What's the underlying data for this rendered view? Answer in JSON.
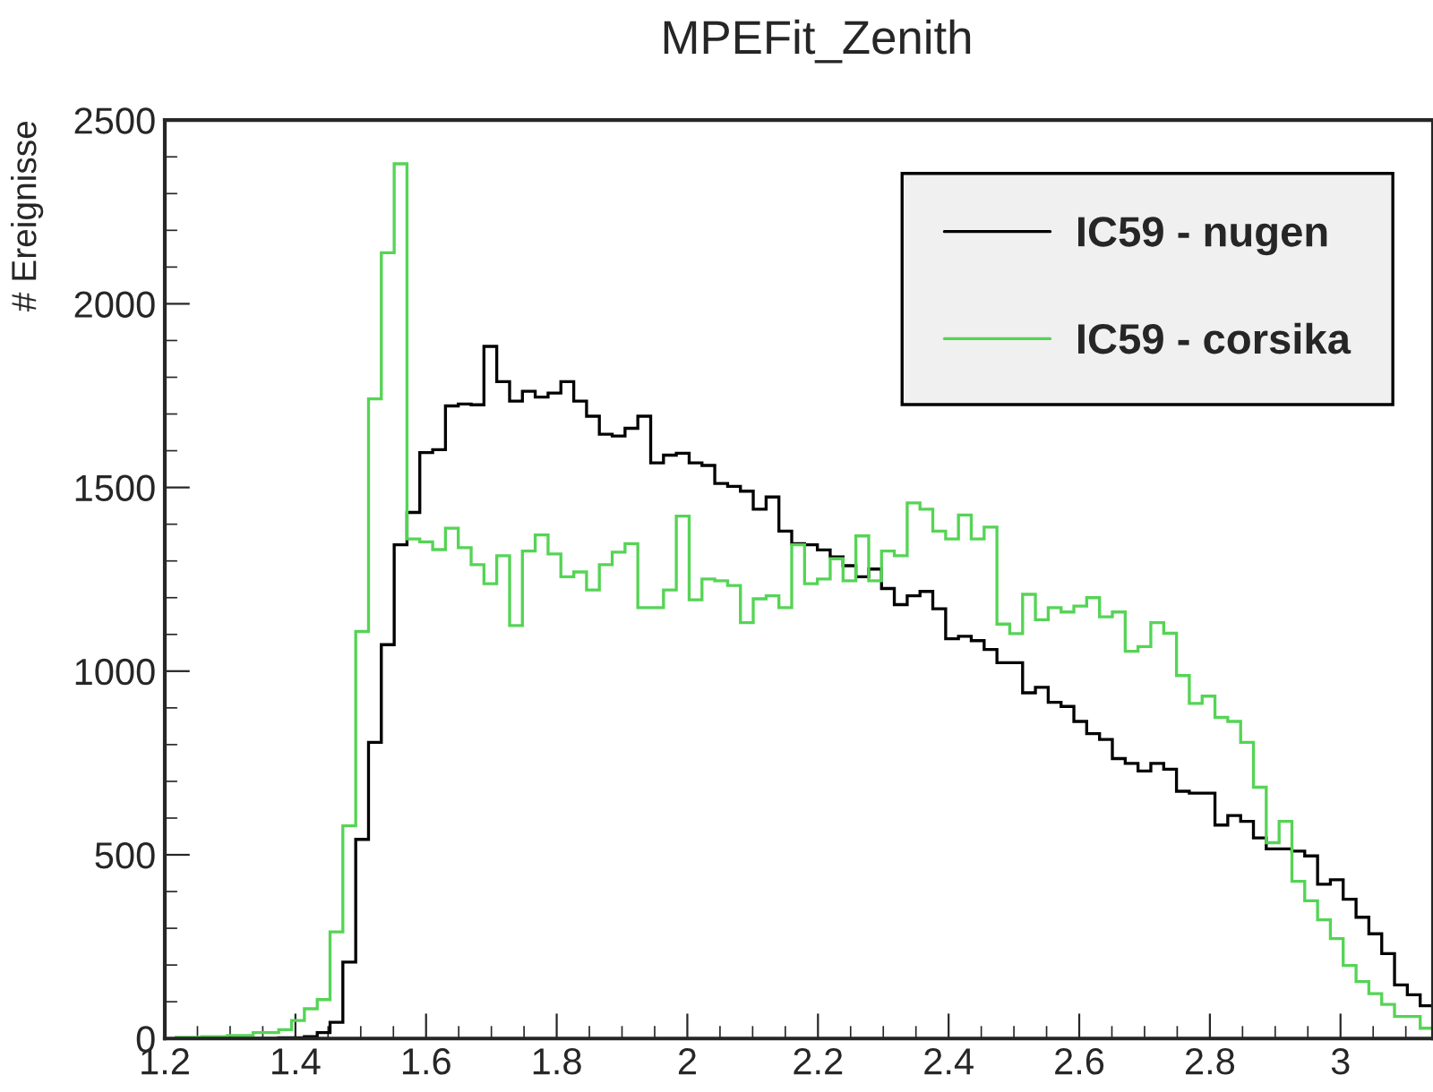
{
  "chart_data": {
    "type": "histogram",
    "title": "MPEFit_Zenith",
    "ylabel": "# Ereignisse",
    "bins": [
      1.2174,
      1.237,
      1.2566,
      1.2763,
      1.2959,
      1.3155,
      1.3352,
      1.3548,
      1.3744,
      1.3941,
      1.4137,
      1.4334,
      1.453,
      1.4726,
      1.4923,
      1.5119,
      1.5315,
      1.5512,
      1.5708,
      1.5904,
      1.6101,
      1.6297,
      1.6493,
      1.669,
      1.6886,
      1.7082,
      1.7279,
      1.7475,
      1.7671,
      1.7868,
      1.8064,
      1.8261,
      1.8457,
      1.8653,
      1.885,
      1.9046,
      1.9242,
      1.9439,
      1.9635,
      1.9831,
      2.0028,
      2.0224,
      2.042,
      2.0617,
      2.0813,
      2.1009,
      2.1206,
      2.1402,
      2.1598,
      2.1795,
      2.1991,
      2.2187,
      2.2384,
      2.258,
      2.2777,
      2.2973,
      2.3169,
      2.3366,
      2.3562,
      2.3758,
      2.3955,
      2.4151,
      2.4347,
      2.4544,
      2.474,
      2.4936,
      2.5133,
      2.5329,
      2.5525,
      2.5722,
      2.5918,
      2.6114,
      2.6311,
      2.6507,
      2.6704,
      2.69,
      2.7096,
      2.7293,
      2.7489,
      2.7685,
      2.7882,
      2.8078,
      2.8274,
      2.8471,
      2.8667,
      2.8863,
      2.906,
      2.9256,
      2.9452,
      2.9649,
      2.9845,
      3.0041,
      3.0238,
      3.0434,
      3.0631,
      3.0827,
      3.1023,
      3.122,
      3.1416
    ],
    "series": [
      {
        "name": "IC59 - nugen",
        "color": "#000000",
        "values": [
          0,
          0,
          0,
          0,
          0,
          0,
          0,
          0,
          2,
          2,
          5,
          16,
          44,
          208,
          542,
          806,
          1072,
          1344,
          1432,
          1595,
          1603,
          1722,
          1727,
          1725,
          1884,
          1788,
          1735,
          1762,
          1746,
          1757,
          1788,
          1735,
          1694,
          1645,
          1640,
          1661,
          1694,
          1567,
          1588,
          1593,
          1567,
          1560,
          1511,
          1503,
          1490,
          1441,
          1474,
          1381,
          1347,
          1344,
          1330,
          1311,
          1287,
          1257,
          1278,
          1225,
          1181,
          1205,
          1217,
          1170,
          1088,
          1095,
          1083,
          1059,
          1023,
          1023,
          941,
          956,
          915,
          904,
          863,
          830,
          814,
          762,
          749,
          728,
          749,
          733,
          673,
          668,
          668,
          581,
          607,
          591,
          546,
          516,
          516,
          510,
          497,
          420,
          432,
          379,
          330,
          285,
          231,
          146,
          119,
          89
        ]
      },
      {
        "name": "IC59 - corsika",
        "color": "#55d455",
        "values": [
          3,
          3,
          5,
          5,
          8,
          8,
          16,
          16,
          24,
          49,
          81,
          106,
          290,
          579,
          1108,
          1741,
          2139,
          2381,
          1360,
          1352,
          1331,
          1389,
          1336,
          1290,
          1238,
          1314,
          1124,
          1327,
          1371,
          1319,
          1257,
          1270,
          1221,
          1290,
          1324,
          1347,
          1173,
          1173,
          1221,
          1422,
          1194,
          1251,
          1246,
          1233,
          1132,
          1197,
          1205,
          1173,
          1344,
          1238,
          1251,
          1306,
          1246,
          1368,
          1246,
          1327,
          1314,
          1458,
          1441,
          1381,
          1360,
          1425,
          1360,
          1392,
          1128,
          1102,
          1209,
          1140,
          1173,
          1161,
          1177,
          1200,
          1148,
          1161,
          1054,
          1067,
          1132,
          1103,
          988,
          912,
          932,
          874,
          863,
          806,
          684,
          533,
          591,
          428,
          375,
          323,
          272,
          199,
          155,
          122,
          93,
          60,
          60,
          28
        ]
      }
    ],
    "xlim": [
      1.2,
      3.1416
    ],
    "xticks": [
      1.2,
      1.4,
      1.6,
      1.8,
      2,
      2.2,
      2.4,
      2.6,
      2.8,
      3
    ],
    "ylim": [
      0,
      2500
    ],
    "yticks": [
      0,
      500,
      1000,
      1500,
      2000,
      2500
    ],
    "grid": false,
    "legend": "top right"
  }
}
